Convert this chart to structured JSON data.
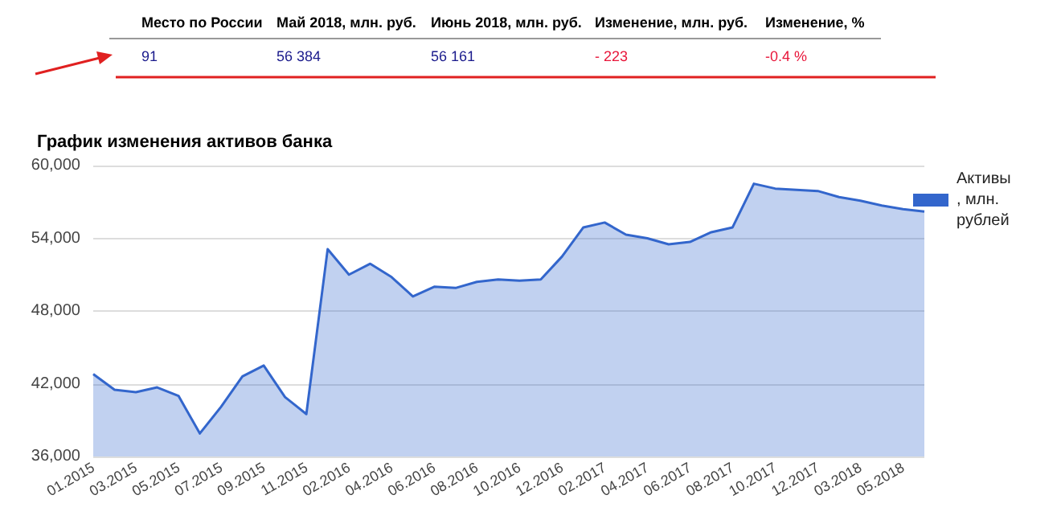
{
  "chart_data": {
    "type": "area",
    "title": "График изменения активов банка",
    "annotations": [
      "Место по России",
      "Май 2018, млн. руб.",
      "Июнь 2018, млн. руб.",
      "Изменение, млн. руб.",
      "Изменение, %",
      "91",
      "56 384",
      "56 161",
      "- 223",
      "-0.4 %"
    ],
    "categories": [
      "01.2015",
      null,
      "03.2015",
      null,
      "05.2015",
      null,
      "07.2015",
      null,
      "09.2015",
      null,
      "11.2015",
      null,
      "02.2016",
      null,
      "04.2016",
      null,
      "06.2016",
      null,
      "08.2016",
      null,
      "10.2016",
      null,
      "12.2016",
      null,
      "02.2017",
      null,
      "04.2017",
      null,
      "06.2017",
      null,
      "08.2017",
      null,
      "10.2017",
      null,
      "12.2017",
      null,
      "03.2018",
      null,
      "05.2018",
      null
    ],
    "series": [
      {
        "name": "Активы, млн. рублей",
        "color": "#3366cc",
        "values": [
          42800,
          41500,
          41300,
          41700,
          41000,
          37900,
          40100,
          42600,
          43500,
          40900,
          39500,
          53100,
          51000,
          51900,
          50800,
          49200,
          50000,
          49900,
          50400,
          50600,
          50500,
          50600,
          52500,
          54900,
          55300,
          54300,
          54000,
          53500,
          53700,
          54500,
          54900,
          58500,
          58100,
          58000,
          57900,
          57400,
          57100,
          56700,
          56400,
          56200
        ]
      }
    ],
    "ylim": [
      36000,
      60000
    ],
    "yticks": [
      {
        "value": 36000,
        "label": "36,000"
      },
      {
        "value": 42000,
        "label": "42,000"
      },
      {
        "value": 48000,
        "label": "48,000"
      },
      {
        "value": 54000,
        "label": "54,000"
      },
      {
        "value": 60000,
        "label": "60,000"
      }
    ],
    "grid": "y",
    "legend": "top right",
    "marker": "none",
    "line_style": "solid"
  }
}
